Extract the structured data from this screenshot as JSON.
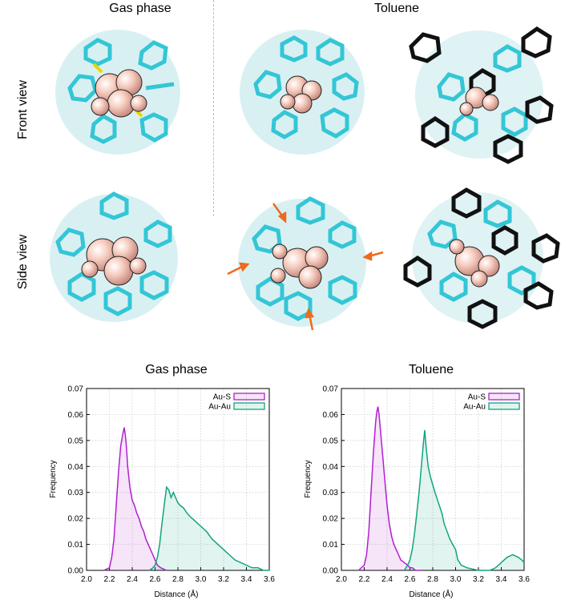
{
  "figure": {
    "col_headers": [
      "Gas phase",
      "Toluene"
    ],
    "row_labels": [
      "Front view",
      "Side view"
    ]
  },
  "colors": {
    "au_s": "#b21fd1",
    "au_au": "#11a37f",
    "ligand": "#33c6d6",
    "gold": "#f3bfae",
    "solvent": "#111111",
    "arrow": "#ee6a1c"
  },
  "chart_data": [
    {
      "type": "line",
      "title": "Gas phase",
      "xlabel": "Distance (Å)",
      "ylabel": "Frequency",
      "xlim": [
        2.0,
        3.6
      ],
      "ylim": [
        0,
        0.07
      ],
      "xticks": [
        "2.0",
        "2.2",
        "2.4",
        "2.6",
        "2.8",
        "3.0",
        "3.2",
        "3.4",
        "3.6"
      ],
      "yticks": [
        "0.00",
        "0.01",
        "0.02",
        "0.03",
        "0.04",
        "0.05",
        "0.06",
        "0.07"
      ],
      "grid": true,
      "legend_position": "top-right",
      "series": [
        {
          "name": "Au-S",
          "color": "#b21fd1",
          "x": [
            2.15,
            2.2,
            2.22,
            2.24,
            2.26,
            2.28,
            2.3,
            2.32,
            2.33,
            2.34,
            2.35,
            2.36,
            2.38,
            2.4,
            2.42,
            2.44,
            2.46,
            2.48,
            2.5,
            2.52,
            2.55,
            2.58,
            2.6,
            2.62,
            2.65,
            2.7
          ],
          "y": [
            0.0,
            0.001,
            0.005,
            0.012,
            0.025,
            0.038,
            0.048,
            0.053,
            0.055,
            0.052,
            0.047,
            0.04,
            0.032,
            0.027,
            0.025,
            0.022,
            0.02,
            0.017,
            0.015,
            0.012,
            0.009,
            0.006,
            0.004,
            0.002,
            0.001,
            0.0
          ]
        },
        {
          "name": "Au-Au",
          "color": "#11a37f",
          "x": [
            2.55,
            2.58,
            2.6,
            2.62,
            2.64,
            2.66,
            2.68,
            2.7,
            2.72,
            2.74,
            2.76,
            2.78,
            2.8,
            2.82,
            2.85,
            2.88,
            2.9,
            2.95,
            3.0,
            3.05,
            3.1,
            3.15,
            3.2,
            3.25,
            3.3,
            3.35,
            3.4,
            3.45,
            3.5,
            3.55,
            3.6
          ],
          "y": [
            0.0,
            0.001,
            0.002,
            0.005,
            0.01,
            0.018,
            0.025,
            0.032,
            0.031,
            0.028,
            0.03,
            0.028,
            0.026,
            0.025,
            0.024,
            0.022,
            0.021,
            0.019,
            0.017,
            0.015,
            0.012,
            0.01,
            0.008,
            0.006,
            0.004,
            0.003,
            0.002,
            0.001,
            0.001,
            0.0,
            0.0
          ]
        }
      ]
    },
    {
      "type": "line",
      "title": "Toluene",
      "xlabel": "Distance (Å)",
      "ylabel": "Frequency",
      "xlim": [
        2.0,
        3.6
      ],
      "ylim": [
        0,
        0.07
      ],
      "xticks": [
        "2.0",
        "2.2",
        "2.4",
        "2.6",
        "2.8",
        "3.0",
        "3.2",
        "3.4",
        "3.6"
      ],
      "yticks": [
        "0.00",
        "0.01",
        "0.02",
        "0.03",
        "0.04",
        "0.05",
        "0.06",
        "0.07"
      ],
      "grid": true,
      "legend_position": "top-right",
      "series": [
        {
          "name": "Au-S",
          "color": "#b21fd1",
          "x": [
            2.15,
            2.2,
            2.22,
            2.24,
            2.26,
            2.28,
            2.3,
            2.31,
            2.32,
            2.33,
            2.34,
            2.36,
            2.38,
            2.4,
            2.42,
            2.44,
            2.46,
            2.48,
            2.5,
            2.52,
            2.55,
            2.58,
            2.6,
            2.62,
            2.65,
            2.7
          ],
          "y": [
            0.0,
            0.002,
            0.006,
            0.015,
            0.03,
            0.045,
            0.057,
            0.061,
            0.063,
            0.06,
            0.055,
            0.045,
            0.035,
            0.025,
            0.018,
            0.013,
            0.01,
            0.008,
            0.006,
            0.004,
            0.003,
            0.002,
            0.001,
            0.001,
            0.0,
            0.0
          ]
        },
        {
          "name": "Au-Au",
          "color": "#11a37f",
          "x": [
            2.55,
            2.58,
            2.6,
            2.62,
            2.64,
            2.66,
            2.68,
            2.7,
            2.72,
            2.73,
            2.74,
            2.76,
            2.78,
            2.8,
            2.82,
            2.85,
            2.88,
            2.9,
            2.95,
            3.0,
            3.02,
            3.05,
            3.1,
            3.2,
            3.3,
            3.35,
            3.4,
            3.45,
            3.5,
            3.55,
            3.58,
            3.6
          ],
          "y": [
            0.0,
            0.002,
            0.004,
            0.008,
            0.014,
            0.022,
            0.03,
            0.04,
            0.05,
            0.054,
            0.048,
            0.04,
            0.036,
            0.033,
            0.03,
            0.026,
            0.022,
            0.018,
            0.012,
            0.008,
            0.004,
            0.002,
            0.001,
            0.0,
            0.0,
            0.001,
            0.003,
            0.005,
            0.006,
            0.005,
            0.004,
            0.003
          ]
        }
      ]
    }
  ]
}
